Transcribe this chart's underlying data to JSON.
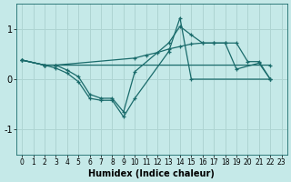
{
  "xlabel": "Humidex (Indice chaleur)",
  "xlim": [
    -0.5,
    23.5
  ],
  "ylim": [
    -1.5,
    1.5
  ],
  "xticks": [
    0,
    1,
    2,
    3,
    4,
    5,
    6,
    7,
    8,
    9,
    10,
    11,
    12,
    13,
    14,
    15,
    16,
    17,
    18,
    19,
    20,
    21,
    22,
    23
  ],
  "yticks": [
    -1,
    0,
    1
  ],
  "background_color": "#c5e9e8",
  "grid_color": "#aed4d2",
  "line_color": "#1a6b6b",
  "lines": [
    {
      "x": [
        0,
        2,
        3,
        22
      ],
      "y": [
        0.38,
        0.28,
        0.28,
        0.28
      ]
    },
    {
      "x": [
        0,
        2,
        3,
        10,
        11,
        12,
        13,
        14,
        15,
        16,
        17,
        18,
        19,
        20,
        21,
        22
      ],
      "y": [
        0.38,
        0.28,
        0.28,
        0.42,
        0.48,
        0.53,
        0.6,
        0.65,
        0.7,
        0.72,
        0.72,
        0.72,
        0.72,
        0.35,
        0.35,
        0.0
      ]
    },
    {
      "x": [
        0,
        2,
        3,
        4,
        5,
        6,
        7,
        8,
        9,
        10,
        13,
        14,
        15,
        16,
        17,
        18,
        19,
        21,
        22
      ],
      "y": [
        0.38,
        0.28,
        0.28,
        0.18,
        0.05,
        -0.3,
        -0.38,
        -0.38,
        -0.65,
        0.15,
        0.72,
        1.05,
        0.88,
        0.72,
        0.72,
        0.72,
        0.2,
        0.32,
        0.0
      ]
    },
    {
      "x": [
        0,
        2,
        3,
        4,
        5,
        6,
        7,
        8,
        9,
        10,
        13,
        14,
        15,
        22
      ],
      "y": [
        0.38,
        0.28,
        0.22,
        0.12,
        -0.05,
        -0.38,
        -0.42,
        -0.42,
        -0.75,
        -0.38,
        0.55,
        1.22,
        0.0,
        0.0
      ]
    }
  ]
}
